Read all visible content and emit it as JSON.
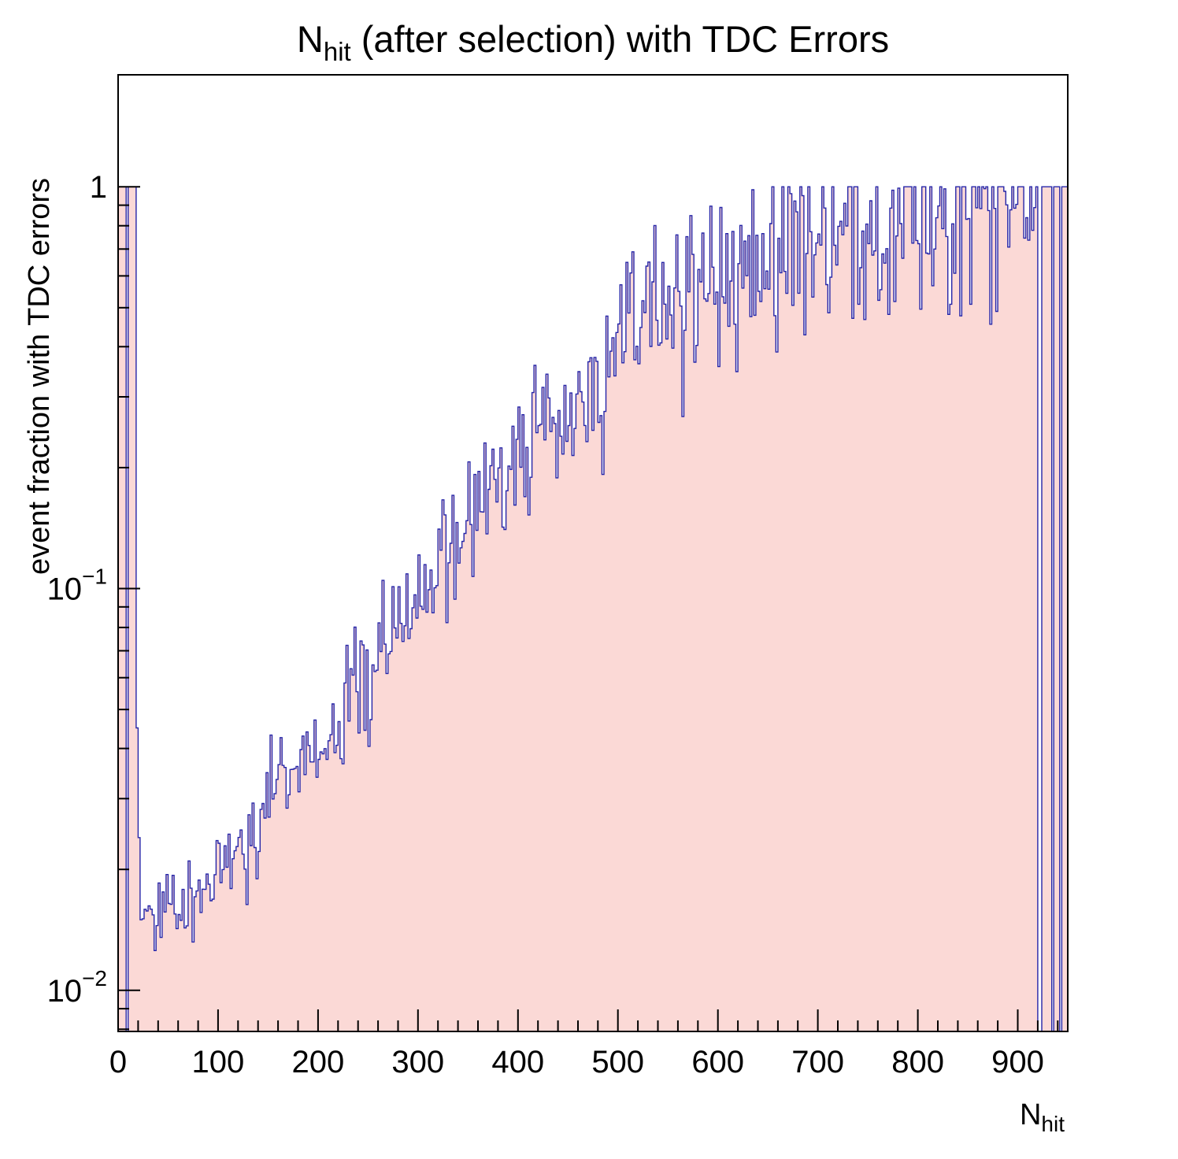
{
  "title": {
    "prefix": "N",
    "subscript": "hit",
    "suffix": " (after selection) with TDC Errors"
  },
  "y_axis": {
    "title": "event fraction with TDC errors",
    "scale": "log",
    "min": 0.0079,
    "max": 1.9,
    "major_ticks": [
      {
        "value": 1,
        "base": "1",
        "exp": ""
      },
      {
        "value": 0.1,
        "base": "10",
        "exp": "−1"
      },
      {
        "value": 0.01,
        "base": "10",
        "exp": "−2"
      }
    ]
  },
  "x_axis": {
    "title_prefix": "N",
    "title_subscript": "hit",
    "min": 0,
    "max": 950,
    "major_tick_step": 100,
    "minor_tick_step": 20,
    "labels": [
      "0",
      "100",
      "200",
      "300",
      "400",
      "500",
      "600",
      "700",
      "800",
      "900"
    ]
  },
  "chart_data": {
    "type": "bar",
    "style": "histogram",
    "title": "N_hit (after selection) with TDC Errors",
    "xlabel": "N_hit",
    "ylabel": "event fraction with TDC errors",
    "x_range": [
      0,
      950
    ],
    "y_range": [
      0.0079,
      1.9
    ],
    "y_scale": "log",
    "bin_width": 2,
    "trend_points": [
      [
        22,
        0.0155
      ],
      [
        40,
        0.016
      ],
      [
        60,
        0.0165
      ],
      [
        80,
        0.017
      ],
      [
        100,
        0.019
      ],
      [
        120,
        0.021
      ],
      [
        140,
        0.025
      ],
      [
        160,
        0.03
      ],
      [
        180,
        0.036
      ],
      [
        200,
        0.042
      ],
      [
        215,
        0.044
      ],
      [
        230,
        0.05
      ],
      [
        250,
        0.06
      ],
      [
        270,
        0.072
      ],
      [
        290,
        0.086
      ],
      [
        310,
        0.103
      ],
      [
        330,
        0.122
      ],
      [
        350,
        0.145
      ],
      [
        370,
        0.17
      ],
      [
        390,
        0.2
      ],
      [
        410,
        0.232
      ],
      [
        430,
        0.262
      ],
      [
        450,
        0.3
      ],
      [
        470,
        0.335
      ],
      [
        490,
        0.37
      ],
      [
        510,
        0.41
      ],
      [
        530,
        0.45
      ],
      [
        550,
        0.49
      ],
      [
        570,
        0.53
      ],
      [
        590,
        0.57
      ],
      [
        610,
        0.61
      ],
      [
        630,
        0.65
      ],
      [
        650,
        0.69
      ],
      [
        670,
        0.73
      ],
      [
        690,
        0.765
      ],
      [
        710,
        0.795
      ],
      [
        730,
        0.82
      ],
      [
        750,
        0.845
      ],
      [
        770,
        0.865
      ],
      [
        790,
        0.885
      ],
      [
        810,
        0.9
      ],
      [
        840,
        0.915
      ],
      [
        870,
        0.93
      ],
      [
        900,
        0.935
      ],
      [
        920,
        0.93
      ]
    ],
    "overrides": [
      [
        0,
        8,
        1.0
      ],
      [
        8,
        10,
        0
      ],
      [
        10,
        18,
        1.0
      ],
      [
        18,
        20,
        0.045
      ],
      [
        20,
        22,
        0.024
      ],
      [
        920,
        924,
        0
      ],
      [
        924,
        934,
        1.0
      ],
      [
        934,
        936,
        0
      ],
      [
        936,
        942,
        1.0
      ],
      [
        942,
        944,
        0
      ],
      [
        944,
        950,
        1.0
      ]
    ],
    "noise_sigma_base": 0.045,
    "noise_sigma_scale": 0.095,
    "seed": 20240,
    "cap": 1.0,
    "line_color": "#2525a8",
    "fill_color": "#fbd9d6",
    "frame_color": "#000000"
  }
}
